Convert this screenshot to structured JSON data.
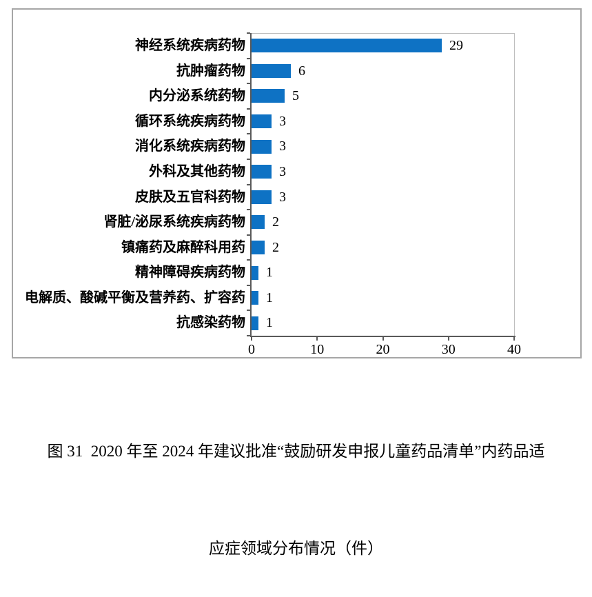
{
  "figure": {
    "caption_line1": "图 31  2020 年至 2024 年建议批准“鼓励研发申报儿童药品清单”内药品适",
    "caption_line2": "应症领域分布情况（件）"
  },
  "chart_data": {
    "type": "bar",
    "orientation": "horizontal",
    "title": "",
    "xlabel": "",
    "ylabel": "",
    "categories": [
      "神经系统疾病药物",
      "抗肿瘤药物",
      "内分泌系统药物",
      "循环系统疾病药物",
      "消化系统疾病药物",
      "外科及其他药物",
      "皮肤及五官科药物",
      "肾脏/泌尿系统疾病药物",
      "镇痛药及麻醉科用药",
      "精神障碍疾病药物",
      "电解质、酸碱平衡及营养药、扩容药",
      "抗感染药物"
    ],
    "values": [
      29,
      6,
      5,
      3,
      3,
      3,
      3,
      2,
      2,
      1,
      1,
      1
    ],
    "value_labels_shown": true,
    "xlim": [
      0,
      40
    ],
    "xticks": [
      0,
      10,
      20,
      30,
      40
    ],
    "grid": false,
    "legend": "none"
  },
  "colors": {
    "bar": "#0e72c4",
    "axis": "#595959",
    "plot_border": "#bfbfbf",
    "frame_border": "#a6a6a6",
    "text": "#000000"
  }
}
